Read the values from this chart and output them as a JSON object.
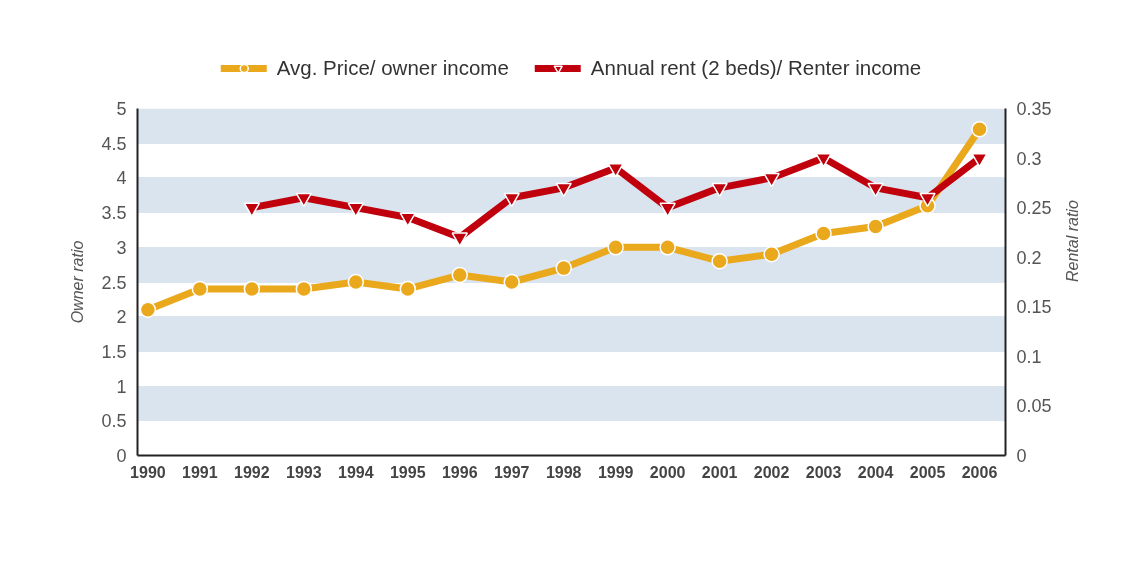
{
  "chart_data": {
    "type": "line",
    "x": [
      1990,
      1991,
      1992,
      1993,
      1994,
      1995,
      1996,
      1997,
      1998,
      1999,
      2000,
      2001,
      2002,
      2003,
      2004,
      2005,
      2006
    ],
    "xlim": [
      1989.8,
      2006.5
    ],
    "xticks": [
      1990,
      1991,
      1992,
      1993,
      1994,
      1995,
      1996,
      1997,
      1998,
      1999,
      2000,
      2001,
      2002,
      2003,
      2004,
      2005,
      2006
    ],
    "ylim": [
      0,
      5
    ],
    "yticks": [
      0,
      0.5,
      1,
      1.5,
      2,
      2.5,
      3,
      3.5,
      4,
      4.5,
      5
    ],
    "y2lim": [
      0,
      0.35
    ],
    "y2ticks": [
      0,
      0.05,
      0.1,
      0.15,
      0.2,
      0.25,
      0.3,
      0.35
    ],
    "ylabel": "Owner ratio",
    "y2label": "Rental ratio",
    "grid": "y",
    "legend": "top",
    "series": [
      {
        "name": "Avg. Price/ owner income",
        "color": "#eaa81d",
        "marker": "circle",
        "values": [
          2.1,
          2.4,
          2.4,
          2.4,
          2.5,
          2.4,
          2.6,
          2.5,
          2.7,
          3.0,
          3.0,
          2.8,
          2.9,
          3.2,
          3.3,
          3.6,
          4.7
        ]
      },
      {
        "name": "Annual rent (2 beds)/ Renter income",
        "color": "#c0000c",
        "marker": "triangle",
        "axis": "y2",
        "values": [
          null,
          null,
          0.25,
          0.26,
          0.25,
          0.24,
          0.22,
          0.26,
          0.27,
          0.29,
          0.25,
          0.27,
          0.28,
          0.3,
          0.27,
          0.26,
          0.3
        ]
      }
    ]
  }
}
